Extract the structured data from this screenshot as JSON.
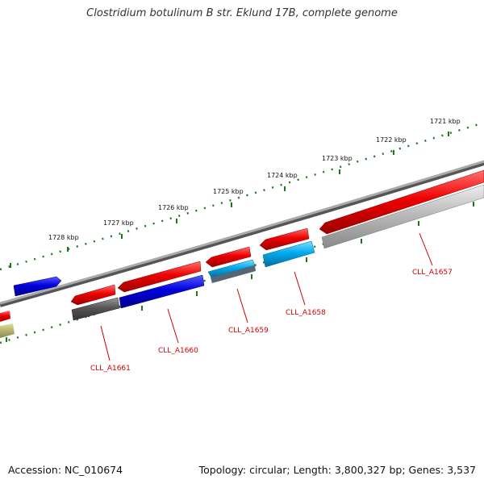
{
  "title": "Clostridium botulinum B str. Eklund 17B, complete genome",
  "footer": {
    "accession": "Accession: NC_010674",
    "summary": "Topology: circular; Length: 3,800,327 bp; Genes: 3,537"
  },
  "ticks": [
    "1721 kbp",
    "1722 kbp",
    "1723 kbp",
    "1724 kbp",
    "1725 kbp",
    "1726 kbp",
    "1727 kbp",
    "1728 kbp"
  ],
  "gene_labels": [
    "CLL_A1657",
    "CLL_A1658",
    "CLL_A1659",
    "CLL_A1660",
    "CLL_A1661"
  ],
  "colors": {
    "red_gene": "#ee0000",
    "blue_gene": "#0000dd",
    "cyan_gene": "#00aaee",
    "gray_gene": "#555555",
    "lightgray_gene": "#bbbbbb",
    "olive_gene": "#b8b870",
    "backbone": "#777777",
    "tick": "#1a7a1a",
    "label": "#cc0000"
  }
}
